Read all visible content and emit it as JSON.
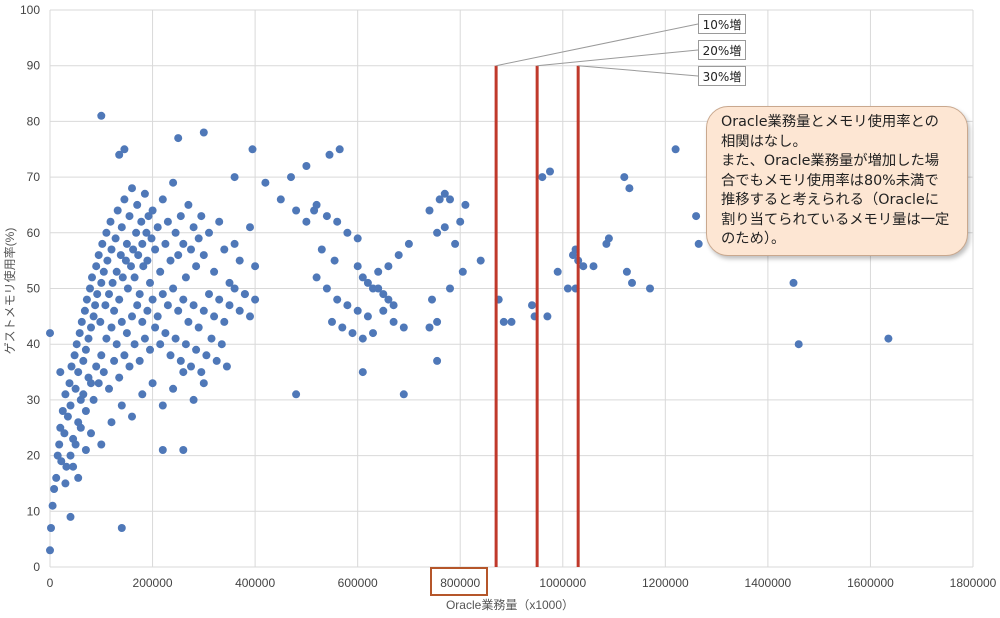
{
  "chart_data": {
    "type": "scatter",
    "title": "",
    "xlabel": "Oracle業務量（x1000）",
    "ylabel": "ゲストメモリ使用率(%)",
    "xlim": [
      0,
      1800000
    ],
    "ylim": [
      0,
      100
    ],
    "x_ticks": [
      "0",
      "200000",
      "400000",
      "600000",
      "800000",
      "1000000",
      "1200000",
      "1400000",
      "1600000",
      "1800000"
    ],
    "y_ticks": [
      "0",
      "10",
      "20",
      "30",
      "40",
      "50",
      "60",
      "70",
      "80",
      "90",
      "100"
    ],
    "grid": true,
    "marker_color": "#4f78b8",
    "highlighted_tick": "800000",
    "series": [
      {
        "points": [
          [
            0,
            3
          ],
          [
            2000,
            7
          ],
          [
            5000,
            11
          ],
          [
            8000,
            14
          ],
          [
            12000,
            16
          ],
          [
            15000,
            20
          ],
          [
            18000,
            22
          ],
          [
            20000,
            25
          ],
          [
            22000,
            19
          ],
          [
            25000,
            28
          ],
          [
            28000,
            24
          ],
          [
            30000,
            31
          ],
          [
            32000,
            18
          ],
          [
            35000,
            27
          ],
          [
            38000,
            33
          ],
          [
            40000,
            29
          ],
          [
            42000,
            36
          ],
          [
            45000,
            23
          ],
          [
            48000,
            38
          ],
          [
            50000,
            32
          ],
          [
            52000,
            40
          ],
          [
            55000,
            35
          ],
          [
            58000,
            42
          ],
          [
            60000,
            30
          ],
          [
            62000,
            44
          ],
          [
            65000,
            37
          ],
          [
            68000,
            46
          ],
          [
            70000,
            39
          ],
          [
            72000,
            48
          ],
          [
            75000,
            41
          ],
          [
            78000,
            50
          ],
          [
            80000,
            43
          ],
          [
            82000,
            52
          ],
          [
            85000,
            45
          ],
          [
            88000,
            47
          ],
          [
            90000,
            54
          ],
          [
            92000,
            49
          ],
          [
            95000,
            56
          ],
          [
            98000,
            44
          ],
          [
            100000,
            51
          ],
          [
            102000,
            58
          ],
          [
            105000,
            53
          ],
          [
            108000,
            47
          ],
          [
            110000,
            60
          ],
          [
            112000,
            55
          ],
          [
            115000,
            49
          ],
          [
            118000,
            62
          ],
          [
            120000,
            57
          ],
          [
            122000,
            51
          ],
          [
            125000,
            46
          ],
          [
            128000,
            59
          ],
          [
            130000,
            53
          ],
          [
            132000,
            64
          ],
          [
            135000,
            48
          ],
          [
            138000,
            56
          ],
          [
            140000,
            61
          ],
          [
            142000,
            52
          ],
          [
            145000,
            66
          ],
          [
            148000,
            55
          ],
          [
            150000,
            58
          ],
          [
            152000,
            50
          ],
          [
            155000,
            63
          ],
          [
            158000,
            54
          ],
          [
            160000,
            68
          ],
          [
            162000,
            57
          ],
          [
            165000,
            52
          ],
          [
            168000,
            60
          ],
          [
            170000,
            65
          ],
          [
            172000,
            56
          ],
          [
            175000,
            49
          ],
          [
            178000,
            62
          ],
          [
            180000,
            58
          ],
          [
            182000,
            54
          ],
          [
            185000,
            67
          ],
          [
            188000,
            60
          ],
          [
            190000,
            55
          ],
          [
            192000,
            63
          ],
          [
            195000,
            51
          ],
          [
            198000,
            59
          ],
          [
            200000,
            64
          ],
          [
            205000,
            57
          ],
          [
            210000,
            61
          ],
          [
            215000,
            53
          ],
          [
            220000,
            66
          ],
          [
            225000,
            58
          ],
          [
            230000,
            62
          ],
          [
            235000,
            55
          ],
          [
            240000,
            69
          ],
          [
            245000,
            60
          ],
          [
            250000,
            56
          ],
          [
            255000,
            63
          ],
          [
            260000,
            58
          ],
          [
            265000,
            52
          ],
          [
            270000,
            65
          ],
          [
            275000,
            57
          ],
          [
            280000,
            61
          ],
          [
            285000,
            54
          ],
          [
            290000,
            59
          ],
          [
            295000,
            63
          ],
          [
            300000,
            56
          ],
          [
            310000,
            60
          ],
          [
            320000,
            53
          ],
          [
            330000,
            62
          ],
          [
            340000,
            57
          ],
          [
            350000,
            51
          ],
          [
            360000,
            58
          ],
          [
            370000,
            55
          ],
          [
            380000,
            49
          ],
          [
            390000,
            61
          ],
          [
            400000,
            54
          ],
          [
            60000,
            25
          ],
          [
            70000,
            28
          ],
          [
            80000,
            33
          ],
          [
            90000,
            36
          ],
          [
            100000,
            38
          ],
          [
            110000,
            41
          ],
          [
            120000,
            43
          ],
          [
            130000,
            40
          ],
          [
            140000,
            44
          ],
          [
            150000,
            42
          ],
          [
            160000,
            45
          ],
          [
            170000,
            47
          ],
          [
            180000,
            44
          ],
          [
            190000,
            46
          ],
          [
            200000,
            48
          ],
          [
            210000,
            45
          ],
          [
            220000,
            49
          ],
          [
            230000,
            47
          ],
          [
            240000,
            50
          ],
          [
            250000,
            46
          ],
          [
            260000,
            48
          ],
          [
            270000,
            44
          ],
          [
            280000,
            47
          ],
          [
            290000,
            43
          ],
          [
            300000,
            46
          ],
          [
            310000,
            49
          ],
          [
            320000,
            45
          ],
          [
            330000,
            48
          ],
          [
            340000,
            44
          ],
          [
            350000,
            47
          ],
          [
            360000,
            50
          ],
          [
            370000,
            46
          ],
          [
            380000,
            49
          ],
          [
            390000,
            45
          ],
          [
            400000,
            48
          ],
          [
            40000,
            20
          ],
          [
            50000,
            22
          ],
          [
            55000,
            26
          ],
          [
            65000,
            31
          ],
          [
            75000,
            34
          ],
          [
            85000,
            30
          ],
          [
            95000,
            33
          ],
          [
            105000,
            35
          ],
          [
            115000,
            32
          ],
          [
            125000,
            37
          ],
          [
            135000,
            34
          ],
          [
            145000,
            38
          ],
          [
            155000,
            36
          ],
          [
            165000,
            40
          ],
          [
            175000,
            37
          ],
          [
            185000,
            41
          ],
          [
            195000,
            39
          ],
          [
            205000,
            43
          ],
          [
            215000,
            40
          ],
          [
            225000,
            42
          ],
          [
            235000,
            38
          ],
          [
            245000,
            41
          ],
          [
            255000,
            37
          ],
          [
            265000,
            40
          ],
          [
            275000,
            36
          ],
          [
            285000,
            39
          ],
          [
            295000,
            35
          ],
          [
            305000,
            38
          ],
          [
            315000,
            41
          ],
          [
            325000,
            37
          ],
          [
            335000,
            40
          ],
          [
            345000,
            36
          ],
          [
            30000,
            15
          ],
          [
            45000,
            18
          ],
          [
            55000,
            16
          ],
          [
            70000,
            21
          ],
          [
            80000,
            24
          ],
          [
            100000,
            22
          ],
          [
            120000,
            26
          ],
          [
            140000,
            29
          ],
          [
            160000,
            27
          ],
          [
            180000,
            31
          ],
          [
            200000,
            33
          ],
          [
            220000,
            29
          ],
          [
            240000,
            32
          ],
          [
            260000,
            35
          ],
          [
            280000,
            30
          ],
          [
            300000,
            33
          ],
          [
            100000,
            81
          ],
          [
            300000,
            78
          ],
          [
            250000,
            77
          ],
          [
            135000,
            74
          ],
          [
            145000,
            75
          ],
          [
            395000,
            75
          ],
          [
            545000,
            74
          ],
          [
            565000,
            75
          ],
          [
            500000,
            72
          ],
          [
            470000,
            70
          ],
          [
            360000,
            70
          ],
          [
            420000,
            69
          ],
          [
            450000,
            66
          ],
          [
            480000,
            64
          ],
          [
            515000,
            64
          ],
          [
            500000,
            62
          ],
          [
            520000,
            65
          ],
          [
            540000,
            63
          ],
          [
            560000,
            62
          ],
          [
            580000,
            60
          ],
          [
            600000,
            59
          ],
          [
            530000,
            57
          ],
          [
            555000,
            55
          ],
          [
            600000,
            54
          ],
          [
            610000,
            52
          ],
          [
            620000,
            51
          ],
          [
            630000,
            50
          ],
          [
            640000,
            50
          ],
          [
            650000,
            49
          ],
          [
            660000,
            48
          ],
          [
            670000,
            47
          ],
          [
            520000,
            52
          ],
          [
            540000,
            50
          ],
          [
            560000,
            48
          ],
          [
            580000,
            47
          ],
          [
            600000,
            46
          ],
          [
            620000,
            45
          ],
          [
            550000,
            44
          ],
          [
            570000,
            43
          ],
          [
            590000,
            42
          ],
          [
            610000,
            41
          ],
          [
            630000,
            42
          ],
          [
            650000,
            46
          ],
          [
            670000,
            44
          ],
          [
            690000,
            43
          ],
          [
            700000,
            58
          ],
          [
            680000,
            56
          ],
          [
            660000,
            54
          ],
          [
            640000,
            53
          ],
          [
            740000,
            64
          ],
          [
            760000,
            66
          ],
          [
            770000,
            67
          ],
          [
            780000,
            66
          ],
          [
            810000,
            65
          ],
          [
            800000,
            62
          ],
          [
            755000,
            60
          ],
          [
            770000,
            61
          ],
          [
            790000,
            58
          ],
          [
            745000,
            48
          ],
          [
            780000,
            50
          ],
          [
            805000,
            53
          ],
          [
            840000,
            55
          ],
          [
            875000,
            48
          ],
          [
            885000,
            44
          ],
          [
            900000,
            44
          ],
          [
            740000,
            43
          ],
          [
            755000,
            37
          ],
          [
            755000,
            44
          ],
          [
            690000,
            31
          ],
          [
            480000,
            31
          ],
          [
            610000,
            35
          ],
          [
            220000,
            21
          ],
          [
            260000,
            21
          ],
          [
            140000,
            7
          ],
          [
            40000,
            9
          ],
          [
            0,
            42
          ],
          [
            20000,
            35
          ],
          [
            960000,
            70
          ],
          [
            975000,
            71
          ],
          [
            990000,
            53
          ],
          [
            940000,
            47
          ],
          [
            945000,
            45
          ],
          [
            970000,
            45
          ],
          [
            1010000,
            50
          ],
          [
            1025000,
            50
          ],
          [
            1020000,
            56
          ],
          [
            1025000,
            57
          ],
          [
            1030000,
            55
          ],
          [
            1040000,
            54
          ],
          [
            1060000,
            54
          ],
          [
            1085000,
            58
          ],
          [
            1090000,
            59
          ],
          [
            1120000,
            70
          ],
          [
            1130000,
            68
          ],
          [
            1135000,
            51
          ],
          [
            1125000,
            53
          ],
          [
            1170000,
            50
          ],
          [
            1220000,
            75
          ],
          [
            1260000,
            63
          ],
          [
            1265000,
            58
          ],
          [
            1450000,
            51
          ],
          [
            1460000,
            40
          ],
          [
            1635000,
            41
          ]
        ]
      }
    ],
    "reference_lines": [
      {
        "x": 870000,
        "y_top": 90,
        "label": "10%増",
        "color": "#c0392b"
      },
      {
        "x": 950000,
        "y_top": 90,
        "label": "20%増",
        "color": "#c0392b"
      },
      {
        "x": 1030000,
        "y_top": 90,
        "label": "30%増",
        "color": "#c0392b"
      }
    ],
    "annotations": [
      "Oracle業務量とメモリ使用率との",
      "相関はなし。",
      "また、Oracle業務量が増加した場",
      "合でもメモリ使用率は80%未満で",
      "推移すると考えられる（Oracleに",
      "割り当てられているメモリ量は一定",
      "のため）。"
    ]
  }
}
